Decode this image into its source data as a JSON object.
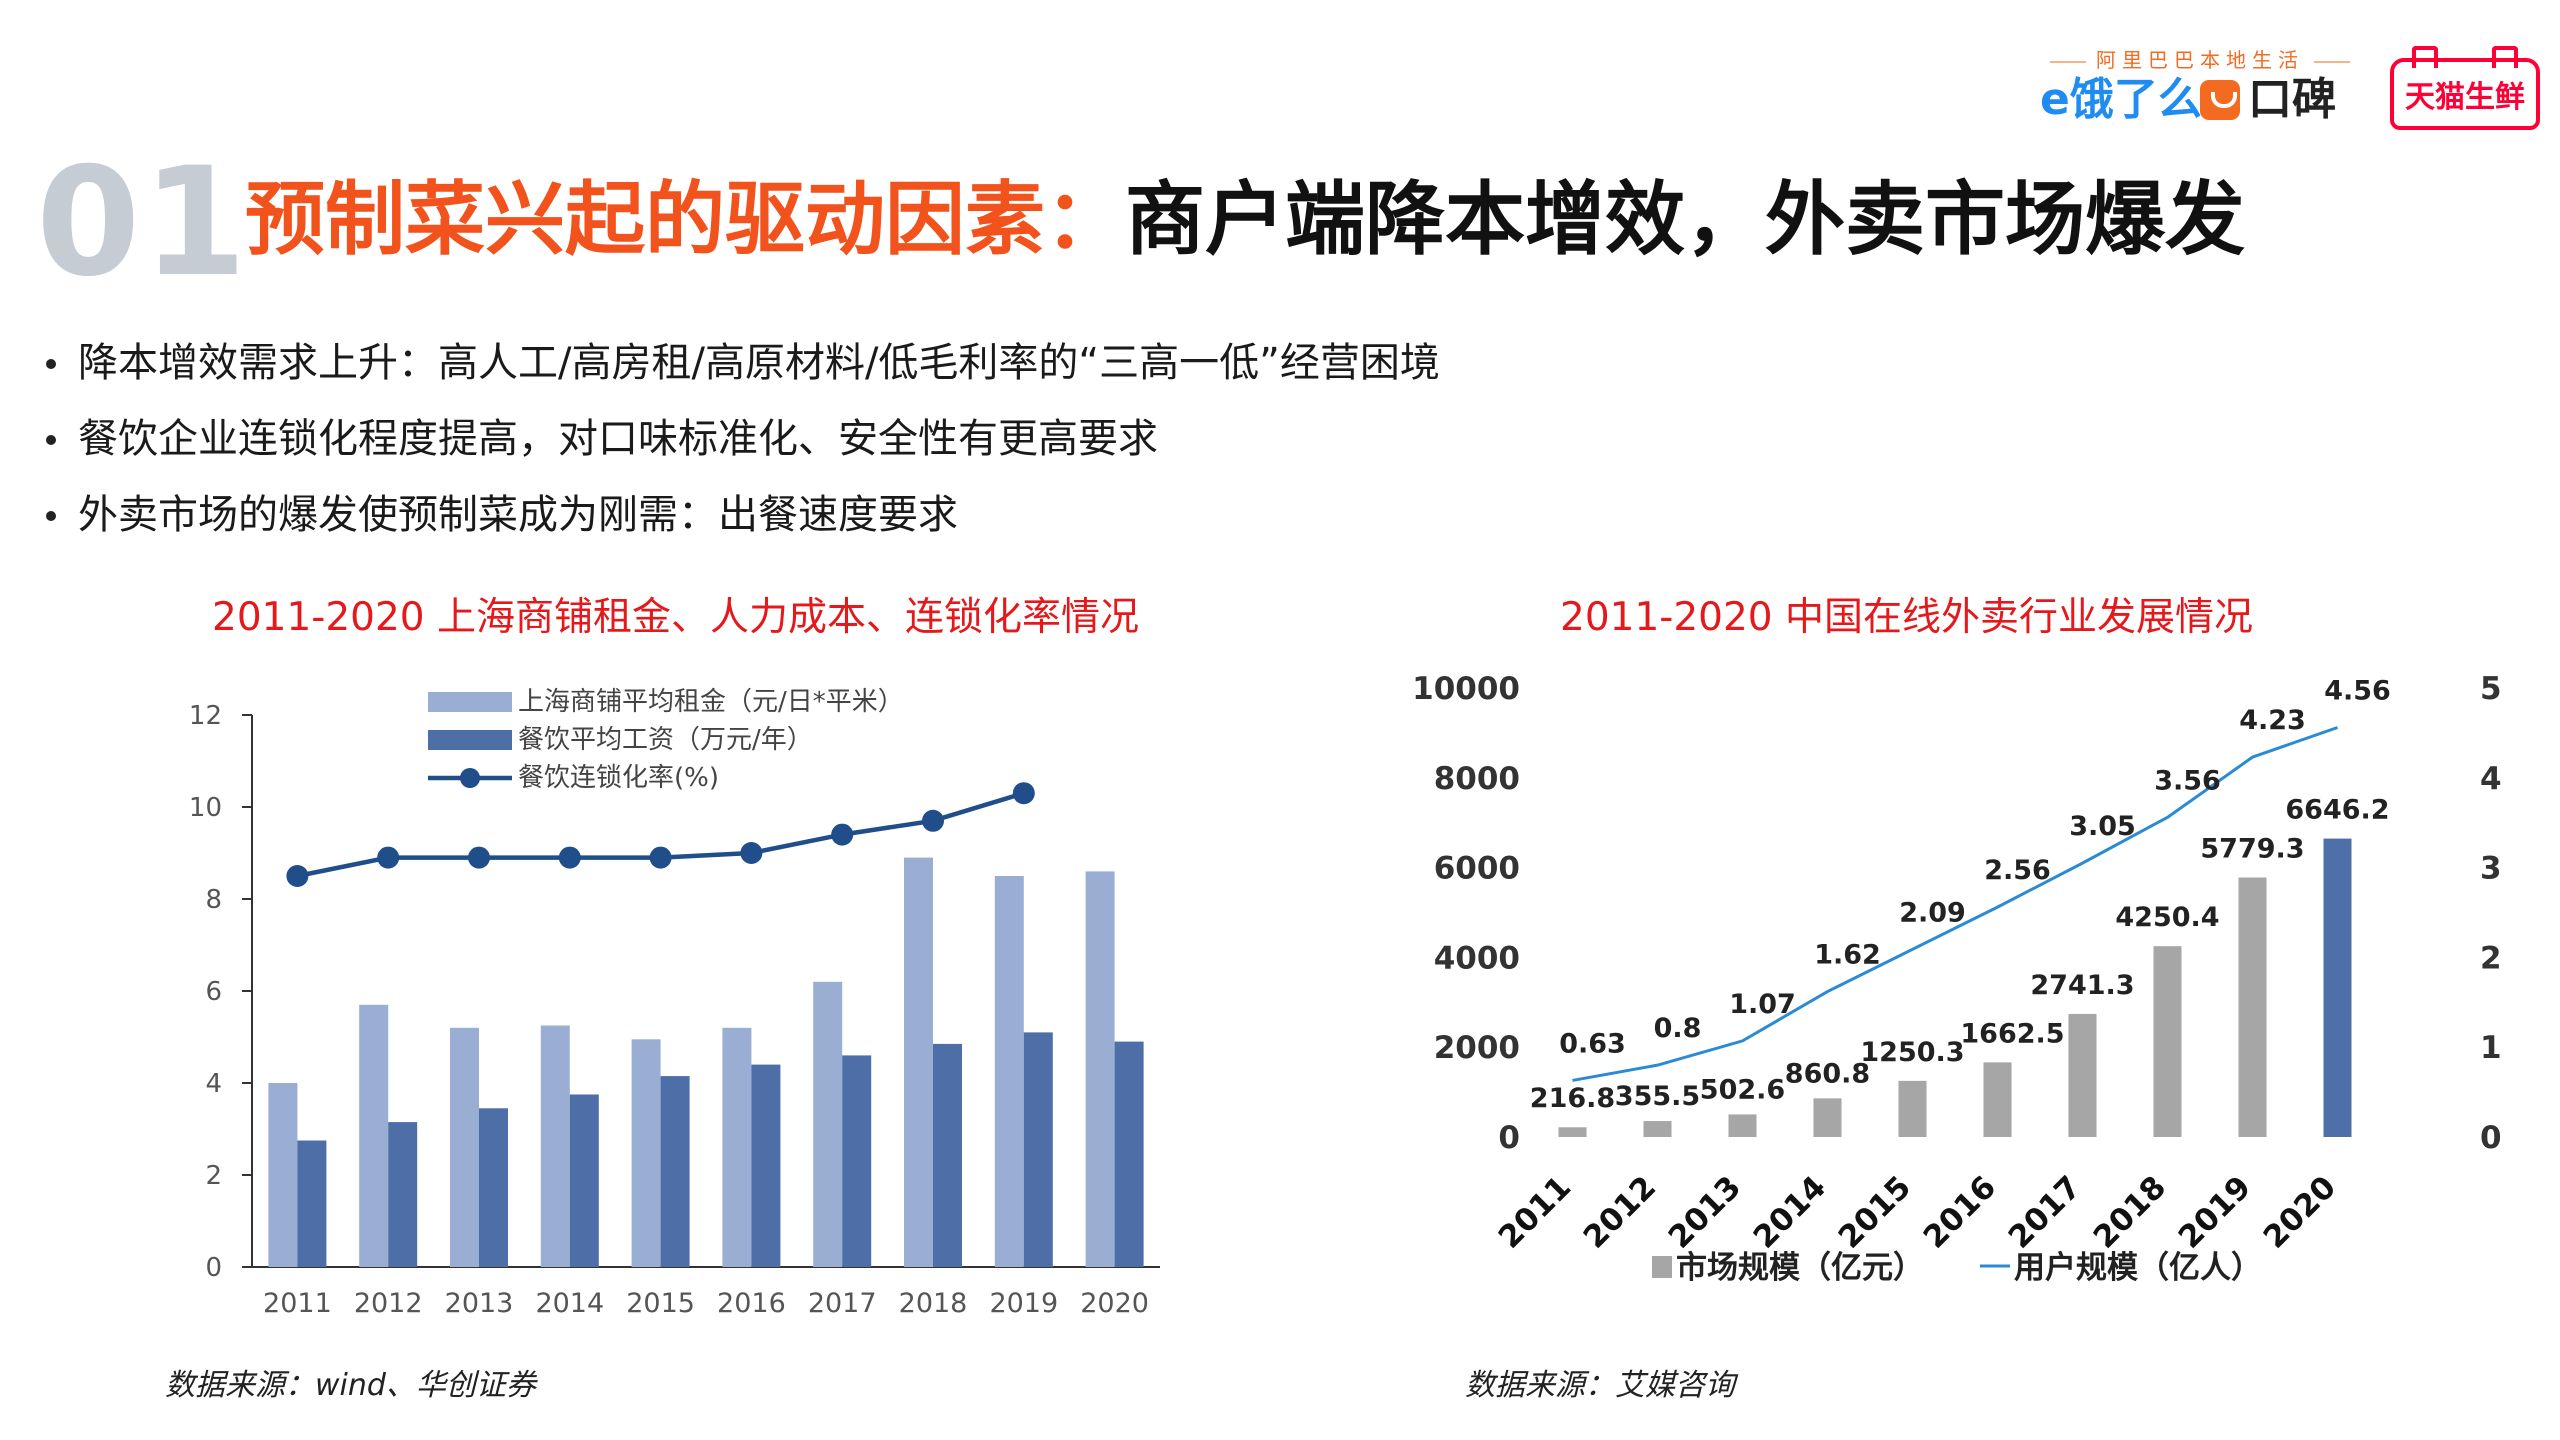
{
  "logos": {
    "tagline": "阿里巴巴本地生活",
    "eleme": "e饿了么",
    "koubei": "口碑",
    "tmall": "天猫生鲜"
  },
  "header": {
    "number": "01",
    "title_red": "预制菜兴起的驱动因素：",
    "title_black": "商户端降本增效，外卖市场爆发"
  },
  "bullets": [
    "降本增效需求上升：高人工/高房租/高原材料/低毛利率的“三高一低”经营困境",
    "餐饮企业连锁化程度提高，对口味标准化、安全性有更高要求",
    "外卖市场的爆发使预制菜成为刚需：出餐速度要求"
  ],
  "colors": {
    "title_red": "#f2521c",
    "chart_title_red": "#e5191b",
    "rent_bar": "#9aaed3",
    "wage_bar": "#4e6ea8",
    "chain_line": "#1f4e8a",
    "market_bar": "#a6a6a6",
    "market_bar_highlight": "#4f6fa9",
    "user_line": "#2a8ad4"
  },
  "chart_data": [
    {
      "type": "bar",
      "title": "2011-2020 上海商铺租金、人力成本、连锁化率情况",
      "source": "数据来源：wind、华创证券",
      "categories": [
        "2011",
        "2012",
        "2013",
        "2014",
        "2015",
        "2016",
        "2017",
        "2018",
        "2019",
        "2020"
      ],
      "ylim": [
        0,
        12
      ],
      "yticks": [
        "0",
        "2",
        "4",
        "6",
        "8",
        "10",
        "12"
      ],
      "grid": false,
      "legend_position": "top",
      "series": [
        {
          "name": "上海商铺平均租金（元/日*平米）",
          "kind": "bar",
          "values": [
            4.0,
            5.7,
            5.2,
            5.25,
            4.95,
            5.2,
            6.2,
            8.9,
            8.5,
            8.6
          ]
        },
        {
          "name": "餐饮平均工资（万元/年）",
          "kind": "bar",
          "values": [
            2.75,
            3.15,
            3.45,
            3.75,
            4.15,
            4.4,
            4.6,
            4.85,
            5.1,
            4.9
          ]
        },
        {
          "name": "餐饮连锁化率(%)",
          "kind": "line",
          "values": [
            8.5,
            8.9,
            8.9,
            8.9,
            8.9,
            9.0,
            9.4,
            9.7,
            10.3,
            null
          ]
        }
      ]
    },
    {
      "type": "bar",
      "title": "2011-2020 中国在线外卖行业发展情况",
      "source": "数据来源：艾媒咨询",
      "categories": [
        "2011",
        "2012",
        "2013",
        "2014",
        "2015",
        "2016",
        "2017",
        "2018",
        "2019",
        "2020"
      ],
      "ylim": [
        0,
        10000
      ],
      "yticks": [
        "0",
        "2000",
        "4000",
        "6000",
        "8000",
        "10000"
      ],
      "y2lim": [
        0,
        5
      ],
      "y2ticks": [
        "0",
        "1",
        "2",
        "3",
        "4",
        "5"
      ],
      "grid": false,
      "legend_position": "bottom",
      "series": [
        {
          "name": "市场规模（亿元）",
          "kind": "bar",
          "axis": "left",
          "values": [
            216.8,
            355.5,
            502.6,
            860.8,
            1250.3,
            1662.5,
            2741.3,
            4250.4,
            5779.3,
            6646.2
          ],
          "labels": [
            "216.8",
            "355.5",
            "502.6",
            "860.8",
            "1250.3",
            "1662.5",
            "2741.3",
            "4250.4",
            "5779.3",
            "6646.2"
          ]
        },
        {
          "name": "用户规模（亿人）",
          "kind": "line",
          "axis": "right",
          "values": [
            0.63,
            0.8,
            1.07,
            1.62,
            2.09,
            2.56,
            3.05,
            3.56,
            4.23,
            4.56
          ],
          "labels": [
            "0.63",
            "0.8",
            "1.07",
            "1.62",
            "2.09",
            "2.56",
            "3.05",
            "3.56",
            "4.23",
            "4.56"
          ]
        }
      ]
    }
  ]
}
